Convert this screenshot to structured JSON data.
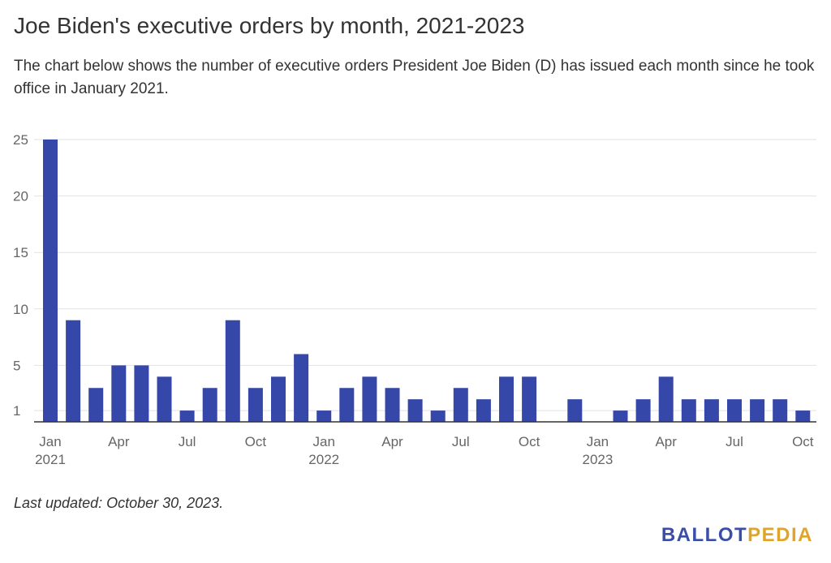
{
  "title": "Joe Biden's executive orders by month, 2021-2023",
  "subtitle": "The chart below shows the number of executive orders President Joe Biden (D) has issued each month since he took office in January 2021.",
  "footnote": "Last updated: October 30, 2023.",
  "brand": {
    "part1": "BALLOT",
    "part2": "PEDIA"
  },
  "colors": {
    "bar": "#3547a8",
    "brand_blue": "#3a4ea8",
    "brand_gold": "#e0a528",
    "grid": "#e2e2e2",
    "axis": "#333333",
    "text": "#333333",
    "tick_text": "#666666"
  },
  "chart_data": {
    "type": "bar",
    "title": "Joe Biden's executive orders by month, 2021-2023",
    "xlabel": "",
    "ylabel": "",
    "ylim": [
      0,
      25
    ],
    "yticks": [
      1,
      5,
      10,
      15,
      20,
      25
    ],
    "grid": true,
    "categories": [
      "Jan 2021",
      "Feb 2021",
      "Mar 2021",
      "Apr 2021",
      "May 2021",
      "Jun 2021",
      "Jul 2021",
      "Aug 2021",
      "Sep 2021",
      "Oct 2021",
      "Nov 2021",
      "Dec 2021",
      "Jan 2022",
      "Feb 2022",
      "Mar 2022",
      "Apr 2022",
      "May 2022",
      "Jun 2022",
      "Jul 2022",
      "Aug 2022",
      "Sep 2022",
      "Oct 2022",
      "Nov 2022",
      "Dec 2022",
      "Jan 2023",
      "Feb 2023",
      "Mar 2023",
      "Apr 2023",
      "May 2023",
      "Jun 2023",
      "Jul 2023",
      "Aug 2023",
      "Sep 2023",
      "Oct 2023"
    ],
    "values": [
      25,
      9,
      3,
      5,
      5,
      4,
      1,
      3,
      9,
      3,
      4,
      6,
      1,
      3,
      4,
      3,
      2,
      1,
      3,
      2,
      4,
      4,
      0,
      2,
      0,
      1,
      2,
      4,
      2,
      2,
      2,
      2,
      2,
      1
    ],
    "x_tick_labels": [
      {
        "index": 0,
        "month": "Jan",
        "year": "2021"
      },
      {
        "index": 3,
        "month": "Apr",
        "year": ""
      },
      {
        "index": 6,
        "month": "Jul",
        "year": ""
      },
      {
        "index": 9,
        "month": "Oct",
        "year": ""
      },
      {
        "index": 12,
        "month": "Jan",
        "year": "2022"
      },
      {
        "index": 15,
        "month": "Apr",
        "year": ""
      },
      {
        "index": 18,
        "month": "Jul",
        "year": ""
      },
      {
        "index": 21,
        "month": "Oct",
        "year": ""
      },
      {
        "index": 24,
        "month": "Jan",
        "year": "2023"
      },
      {
        "index": 27,
        "month": "Apr",
        "year": ""
      },
      {
        "index": 30,
        "month": "Jul",
        "year": ""
      },
      {
        "index": 33,
        "month": "Oct",
        "year": ""
      }
    ]
  }
}
